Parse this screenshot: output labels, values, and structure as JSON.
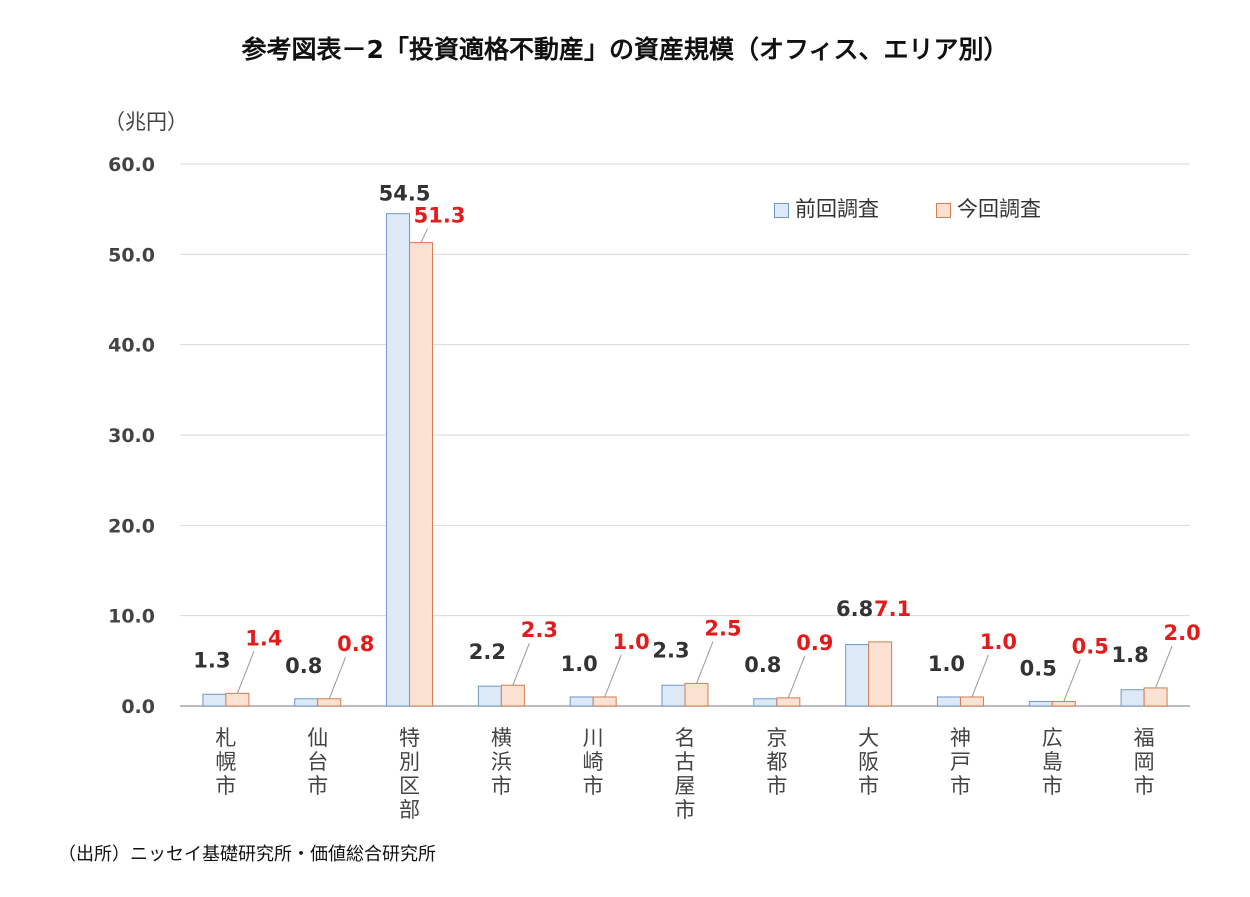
{
  "title": "参考図表－2「投資適格不動産」の資産規模（オフィス、エリア別）",
  "unit_label": "（兆円）",
  "source": "（出所）ニッセイ基礎研究所・価値総合研究所",
  "colors": {
    "prev_fill": "#dde9f6",
    "prev_stroke": "#6f98c8",
    "curr_fill": "#fbe1d2",
    "curr_stroke": "#d37c52",
    "prev_label": "#333333",
    "curr_label": "#e31b1b",
    "grid": "#d9d9d9",
    "axis": "#a6a6a6"
  },
  "chart_data": {
    "type": "bar",
    "title": "参考図表－2「投資適格不動産」の資産規模（オフィス、エリア別）",
    "ylabel": "（兆円）",
    "xlabel": "",
    "ylim": [
      0,
      60
    ],
    "yticks": [
      "0.0",
      "10.0",
      "20.0",
      "30.0",
      "40.0",
      "50.0",
      "60.0"
    ],
    "grid": true,
    "legend_position": "top-right",
    "categories": [
      "札幌市",
      "仙台市",
      "特別区部",
      "横浜市",
      "川崎市",
      "名古屋市",
      "京都市",
      "大阪市",
      "神戸市",
      "広島市",
      "福岡市"
    ],
    "series": [
      {
        "name": "前回調査",
        "values": [
          1.3,
          0.8,
          54.5,
          2.2,
          1.0,
          2.3,
          0.8,
          6.8,
          1.0,
          0.5,
          1.8
        ],
        "labels": [
          "1.3",
          "0.8",
          "54.5",
          "2.2",
          "1.0",
          "2.3",
          "0.8",
          "6.8",
          "1.0",
          "0.5",
          "1.8"
        ]
      },
      {
        "name": "今回調査",
        "values": [
          1.4,
          0.8,
          51.3,
          2.3,
          1.0,
          2.5,
          0.9,
          7.1,
          1.0,
          0.5,
          2.0
        ],
        "labels": [
          "1.4",
          "0.8",
          "51.3",
          "2.3",
          "1.0",
          "2.5",
          "0.9",
          "7.1",
          "1.0",
          "0.5",
          "2.0"
        ]
      }
    ]
  }
}
